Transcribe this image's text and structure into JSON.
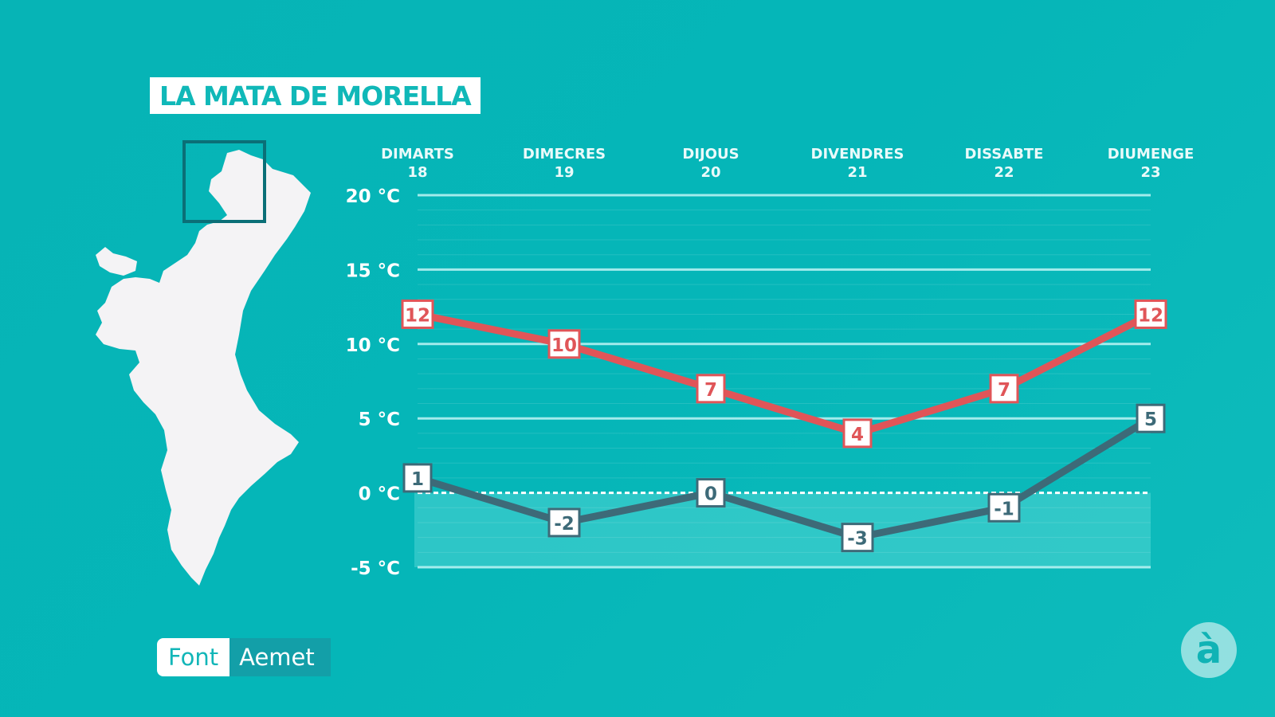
{
  "header": {
    "title": "LA MATA DE MORELLA"
  },
  "source": {
    "label": "Font",
    "value": "Aemet"
  },
  "logo": {
    "text": "à"
  },
  "colors": {
    "max": "#e05558",
    "min": "#3d6a78",
    "background": "#06b4b6"
  },
  "chart_data": {
    "type": "line",
    "categories": [
      {
        "day": "DIMARTS",
        "date": "18"
      },
      {
        "day": "DIMECRES",
        "date": "19"
      },
      {
        "day": "DIJOUS",
        "date": "20"
      },
      {
        "day": "DIVENDRES",
        "date": "21"
      },
      {
        "day": "DISSABTE",
        "date": "22"
      },
      {
        "day": "DIUMENGE",
        "date": "23"
      }
    ],
    "series": [
      {
        "key": "max",
        "values": [
          12,
          10,
          7,
          4,
          7,
          12
        ]
      },
      {
        "key": "min",
        "values": [
          1,
          -2,
          0,
          -3,
          -1,
          5
        ]
      }
    ],
    "yticks": [
      {
        "value": 20,
        "label": "20 °C"
      },
      {
        "value": 15,
        "label": "15 °C"
      },
      {
        "value": 10,
        "label": "10 °C"
      },
      {
        "value": 5,
        "label": "5 °C"
      },
      {
        "value": 0,
        "label": "0 °C"
      },
      {
        "value": -5,
        "label": "-5 °C"
      }
    ],
    "ylim": [
      -5,
      20
    ],
    "grid": true
  }
}
